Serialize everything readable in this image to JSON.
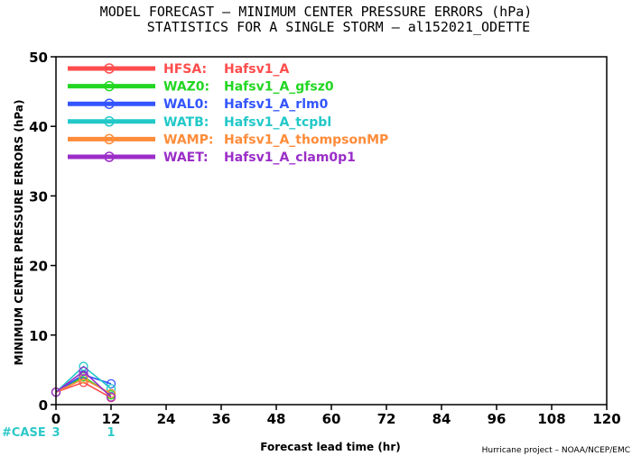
{
  "chart_data": {
    "type": "line",
    "title": "MODEL FORECAST – MINIMUM CENTER PRESSURE ERRORS (hPa)",
    "subtitle": "STATISTICS FOR A SINGLE STORM – al152021_ODETTE",
    "xlabel": "Forecast lead time (hr)",
    "ylabel": "MINIMUM CENTER PRESSURE ERRORS (hPa)",
    "xlim": [
      0,
      120
    ],
    "ylim": [
      0,
      50
    ],
    "x_ticks": [
      "0",
      "12",
      "24",
      "36",
      "48",
      "60",
      "72",
      "84",
      "96",
      "108",
      "120"
    ],
    "y_ticks": [
      "0",
      "10",
      "20",
      "30",
      "40",
      "50"
    ],
    "grid": false,
    "legend_position": "top-left",
    "x": [
      0,
      6,
      12
    ],
    "series": [
      {
        "code": "HFSA:",
        "name": "Hafsv1_A",
        "color": "#ff4d4d",
        "values": [
          1.8,
          3.2,
          1.0
        ]
      },
      {
        "code": "WAZ0:",
        "name": "Hafsv1_A_gfsz0",
        "color": "#22d622",
        "values": [
          1.8,
          4.0,
          1.4
        ]
      },
      {
        "code": "WAL0:",
        "name": "Hafsv1_A_rlm0",
        "color": "#3355ff",
        "values": [
          1.8,
          4.3,
          3.0
        ]
      },
      {
        "code": "WATB:",
        "name": "Hafsv1_A_tcpbl",
        "color": "#22c8c8",
        "values": [
          1.8,
          5.5,
          2.3
        ]
      },
      {
        "code": "WAMP:",
        "name": "Hafsv1_A_thompsonMP",
        "color": "#ff8c3a",
        "values": [
          1.8,
          3.7,
          1.6
        ]
      },
      {
        "code": "WAET:",
        "name": "Hafsv1_A_clam0p1",
        "color": "#9b2ec8",
        "values": [
          1.8,
          4.8,
          1.1
        ]
      }
    ],
    "case_counts": {
      "label": "#CASE",
      "x": [
        0,
        12
      ],
      "values": [
        "3",
        "1"
      ],
      "color": "#2ec8c8"
    },
    "credit": "Hurricane project – NOAA/NCEP/EMC"
  }
}
